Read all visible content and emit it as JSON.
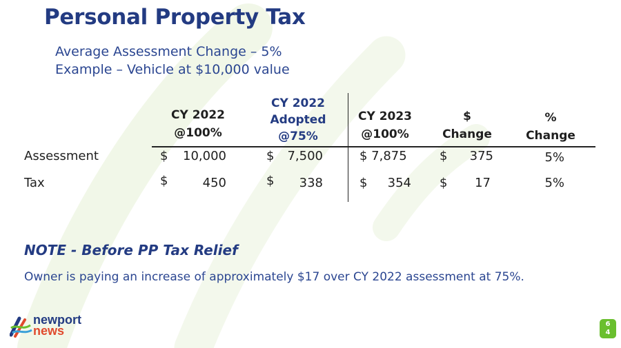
{
  "slide": {
    "title": "Personal Property Tax",
    "subtitle_line1": "Average Assessment Change – 5%",
    "subtitle_line2": "Example – Vehicle at $10,000 value"
  },
  "table": {
    "columns": [
      {
        "line1": "CY 2022",
        "line2": "@100%"
      },
      {
        "line1": "CY 2022",
        "line2": "Adopted",
        "line3": "@75%"
      },
      {
        "line1": "CY 2023",
        "line2": "@100%"
      },
      {
        "line1": "$",
        "line2": "Change"
      },
      {
        "line1": "%",
        "line2": "Change"
      }
    ],
    "rows": [
      {
        "label": "Assessment",
        "cy2022_sign": "$",
        "cy2022_value": "10,000",
        "adopted_sign": "$",
        "adopted_value": "7,500",
        "cy2023": "$ 7,875",
        "dollar_sign": "$",
        "dollar_value": "375",
        "pct": "5%"
      },
      {
        "label": "Tax",
        "cy2022_sign": "$",
        "cy2022_value": "450",
        "adopted_sign": "$",
        "adopted_value": "338",
        "cy2023_sign": "$",
        "cy2023_value": "354",
        "dollar_sign": "$",
        "dollar_value": "17",
        "pct": "5%"
      }
    ]
  },
  "note": {
    "heading": "NOTE - Before PP Tax Relief",
    "text": "Owner is paying an increase of approximately $17 over CY 2022 assessment at 75%."
  },
  "logo": {
    "line1": "newport",
    "line2": "news"
  },
  "page": {
    "digit1": "6",
    "digit2": "4"
  },
  "colors": {
    "navy": "#233b82",
    "accent_green": "#6abf2e",
    "logo_red": "#e04a2d",
    "bg_swoosh": "#f3f8ea"
  }
}
